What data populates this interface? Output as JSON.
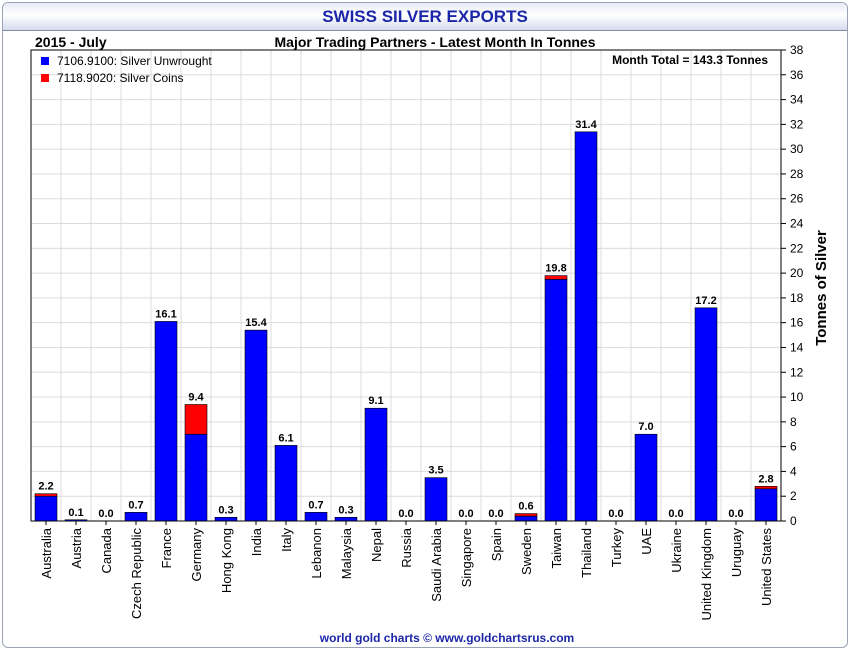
{
  "chart_data": {
    "type": "bar",
    "stacked": true,
    "title": "SWISS SILVER EXPORTS",
    "subtitle": "Major Trading Partners - Latest Month In Tonnes",
    "period": "2015 - July",
    "total_note": "Month Total = 143.3 Tonnes",
    "ylabel": "Tonnes of Silver",
    "xlabel": "",
    "ylim": [
      0,
      38
    ],
    "ytick_step": 2,
    "y_axis_side": "right",
    "grid": true,
    "legend_position": "top-left",
    "footer": "world gold charts © www.goldchartsrus.com",
    "categories": [
      "Australia",
      "Austria",
      "Canada",
      "Czech Republic",
      "France",
      "Germany",
      "Hong Kong",
      "India",
      "Italy",
      "Lebanon",
      "Malaysia",
      "Nepal",
      "Russia",
      "Saudi Arabia",
      "Singapore",
      "Spain",
      "Sweden",
      "Taiwan",
      "Thailand",
      "Turkey",
      "UAE",
      "Ukraine",
      "United Kingdom",
      "Uruguay",
      "United States"
    ],
    "series": [
      {
        "name": "7106.9100: Silver Unwrought",
        "color": "#0000ff",
        "values": [
          2.0,
          0.1,
          0.0,
          0.7,
          16.1,
          7.0,
          0.3,
          15.4,
          6.1,
          0.7,
          0.3,
          9.1,
          0.0,
          3.5,
          0.0,
          0.0,
          0.4,
          19.5,
          31.4,
          0.0,
          7.0,
          0.0,
          17.2,
          0.0,
          2.6
        ]
      },
      {
        "name": "7118.9020: Silver Coins",
        "color": "#ff0000",
        "values": [
          0.2,
          0.0,
          0.0,
          0.0,
          0.0,
          2.4,
          0.0,
          0.0,
          0.0,
          0.0,
          0.0,
          0.0,
          0.0,
          0.0,
          0.0,
          0.0,
          0.2,
          0.3,
          0.0,
          0.0,
          0.0,
          0.0,
          0.0,
          0.0,
          0.2
        ]
      }
    ],
    "totals": [
      "2.2",
      "0.1",
      "0.0",
      "0.7",
      "16.1",
      "9.4",
      "0.3",
      "15.4",
      "6.1",
      "0.7",
      "0.3",
      "9.1",
      "0.0",
      "3.5",
      "0.0",
      "0.0",
      "0.6",
      "19.8",
      "31.4",
      "0.0",
      "7.0",
      "0.0",
      "17.2",
      "0.0",
      "2.8"
    ]
  }
}
